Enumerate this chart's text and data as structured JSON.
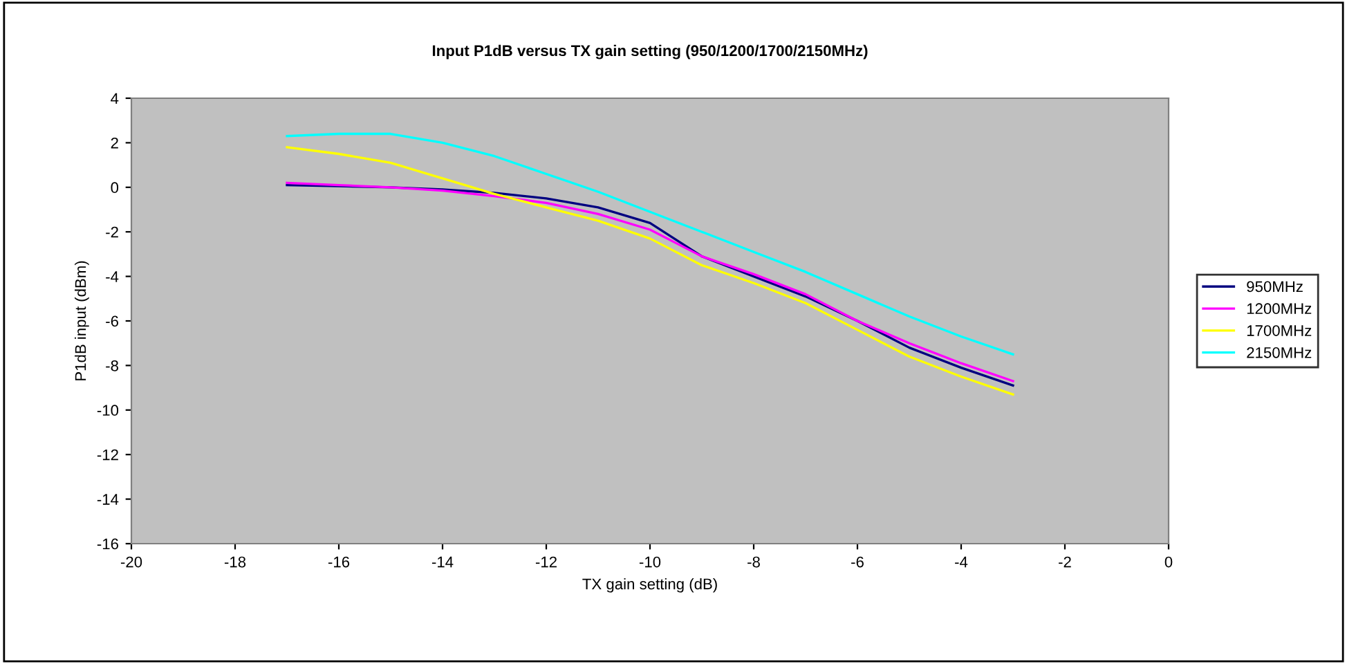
{
  "chart_data": {
    "type": "line",
    "title": "Input P1dB versus TX gain setting (950/1200/1700/2150MHz)",
    "xlabel": "TX gain setting (dB)",
    "ylabel": "P1dB input (dBm)",
    "x": [
      -17,
      -16,
      -15,
      -14,
      -13,
      -12,
      -11,
      -10,
      -9,
      -8,
      -7,
      -6,
      -5,
      -4,
      -3
    ],
    "series": [
      {
        "name": "950MHz",
        "color": "#000080",
        "values": [
          0.1,
          0.05,
          0,
          -0.1,
          -0.25,
          -0.5,
          -0.9,
          -1.6,
          -3.1,
          -4.0,
          -4.9,
          -6.0,
          -7.2,
          -8.1,
          -8.9
        ]
      },
      {
        "name": "1200MHz",
        "color": "#ff00ff",
        "values": [
          0.2,
          0.1,
          0,
          -0.15,
          -0.4,
          -0.7,
          -1.2,
          -1.9,
          -3.1,
          -3.9,
          -4.8,
          -6.0,
          -7.0,
          -7.9,
          -8.7
        ]
      },
      {
        "name": "1700MHz",
        "color": "#ffff00",
        "values": [
          1.8,
          1.5,
          1.1,
          0.4,
          -0.3,
          -0.9,
          -1.5,
          -2.3,
          -3.5,
          -4.3,
          -5.2,
          -6.4,
          -7.6,
          -8.5,
          -9.3
        ]
      },
      {
        "name": "2150MHz",
        "color": "#00ffff",
        "values": [
          2.3,
          2.4,
          2.4,
          2.0,
          1.4,
          0.6,
          -0.2,
          -1.1,
          -2.0,
          -2.9,
          -3.8,
          -4.8,
          -5.8,
          -6.7,
          -7.5
        ]
      }
    ],
    "xlim": [
      -20,
      0
    ],
    "xticks": [
      -20,
      -18,
      -16,
      -14,
      -12,
      -10,
      -8,
      -6,
      -4,
      -2,
      0
    ],
    "ylim": [
      -16,
      4
    ],
    "yticks": [
      -16,
      -14,
      -12,
      -10,
      -8,
      -6,
      -4,
      -2,
      0,
      2,
      4
    ],
    "grid": false,
    "legend": "right",
    "marker": "none",
    "line_style": "solid"
  }
}
